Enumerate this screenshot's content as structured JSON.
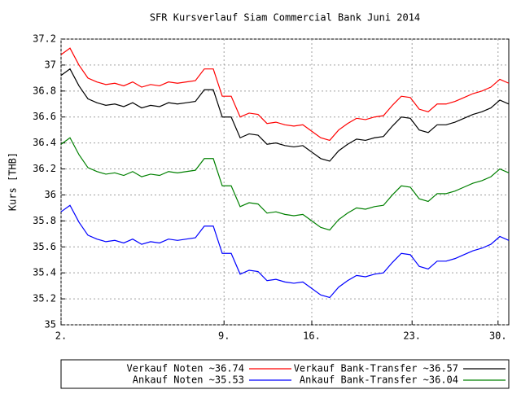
{
  "chart_data": {
    "type": "line",
    "title": "SFR Kursverlauf Siam Commercial Bank Juni 2014",
    "y_label": "Kurs [THB]",
    "x": [
      0,
      1,
      2,
      3,
      4,
      5,
      6,
      7,
      8,
      9,
      10,
      11,
      12,
      13,
      14,
      15,
      16,
      17,
      18,
      19,
      20,
      21,
      22,
      23,
      24,
      25,
      26,
      27,
      28,
      29,
      30,
      31,
      32,
      33,
      34,
      35,
      36,
      37,
      38,
      39,
      40,
      41,
      42,
      43,
      44,
      45,
      46,
      47,
      48,
      49,
      50
    ],
    "xlim": [
      0,
      50
    ],
    "xticks": [
      {
        "value": 0,
        "label": "2."
      },
      {
        "value": 18.2,
        "label": "9."
      },
      {
        "value": 28,
        "label": "16."
      },
      {
        "value": 39.2,
        "label": "23."
      },
      {
        "value": 48.8,
        "label": "30."
      }
    ],
    "ylim": [
      35,
      37.2
    ],
    "yticks": [
      35,
      35.2,
      35.4,
      35.6,
      35.8,
      36,
      36.2,
      36.4,
      36.6,
      36.8,
      37,
      37.2
    ],
    "grid": true,
    "series": [
      {
        "name": "Verkauf Noten ~36.74",
        "color": "#ff0000",
        "values": [
          37.08,
          37.13,
          37.0,
          36.9,
          36.87,
          36.85,
          36.86,
          36.84,
          36.87,
          36.83,
          36.85,
          36.84,
          36.87,
          36.86,
          36.87,
          36.88,
          36.97,
          36.97,
          36.76,
          36.76,
          36.6,
          36.63,
          36.62,
          36.55,
          36.56,
          36.54,
          36.53,
          36.54,
          36.49,
          36.44,
          36.42,
          36.5,
          36.55,
          36.59,
          36.58,
          36.6,
          36.61,
          36.69,
          36.76,
          36.75,
          36.66,
          36.64,
          36.7,
          36.7,
          36.72,
          36.75,
          36.78,
          36.8,
          36.83,
          36.89,
          36.86
        ]
      },
      {
        "name": "Verkauf Bank-Transfer ~36.57",
        "color": "#000000",
        "values": [
          36.92,
          36.97,
          36.84,
          36.74,
          36.71,
          36.69,
          36.7,
          36.68,
          36.71,
          36.67,
          36.69,
          36.68,
          36.71,
          36.7,
          36.71,
          36.72,
          36.81,
          36.81,
          36.6,
          36.6,
          36.44,
          36.47,
          36.46,
          36.39,
          36.4,
          36.38,
          36.37,
          36.38,
          36.33,
          36.28,
          36.26,
          36.34,
          36.39,
          36.43,
          36.42,
          36.44,
          36.45,
          36.53,
          36.6,
          36.59,
          36.5,
          36.48,
          36.54,
          36.54,
          36.56,
          36.59,
          36.62,
          36.64,
          36.67,
          36.73,
          36.7
        ]
      },
      {
        "name": "Ankauf Noten ~35.53",
        "color": "#0000ff",
        "values": [
          35.87,
          35.92,
          35.79,
          35.69,
          35.66,
          35.64,
          35.65,
          35.63,
          35.66,
          35.62,
          35.64,
          35.63,
          35.66,
          35.65,
          35.66,
          35.67,
          35.76,
          35.76,
          35.55,
          35.55,
          35.39,
          35.42,
          35.41,
          35.34,
          35.35,
          35.33,
          35.32,
          35.33,
          35.28,
          35.23,
          35.21,
          35.29,
          35.34,
          35.38,
          35.37,
          35.39,
          35.4,
          35.48,
          35.55,
          35.54,
          35.45,
          35.43,
          35.49,
          35.49,
          35.51,
          35.54,
          35.57,
          35.59,
          35.62,
          35.68,
          35.65
        ]
      },
      {
        "name": "Ankauf Bank-Transfer ~36.04",
        "color": "#008000",
        "values": [
          36.39,
          36.44,
          36.31,
          36.21,
          36.18,
          36.16,
          36.17,
          36.15,
          36.18,
          36.14,
          36.16,
          36.15,
          36.18,
          36.17,
          36.18,
          36.19,
          36.28,
          36.28,
          36.07,
          36.07,
          35.91,
          35.94,
          35.93,
          35.86,
          35.87,
          35.85,
          35.84,
          35.85,
          35.8,
          35.75,
          35.73,
          35.81,
          35.86,
          35.9,
          35.89,
          35.91,
          35.92,
          36.0,
          36.07,
          36.06,
          35.97,
          35.95,
          36.01,
          36.01,
          36.03,
          36.06,
          36.09,
          36.11,
          36.14,
          36.2,
          36.17
        ]
      }
    ]
  }
}
